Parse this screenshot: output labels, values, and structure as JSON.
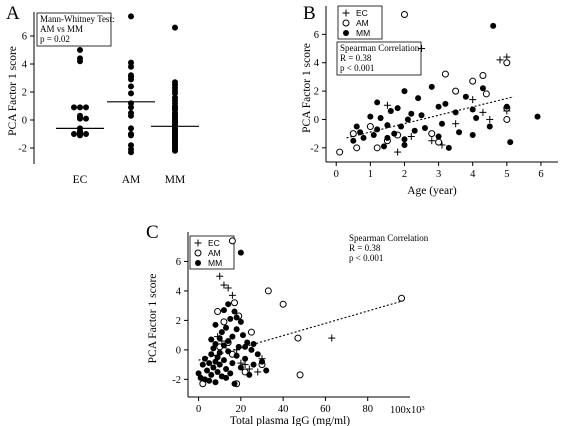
{
  "colors": {
    "ink": "#000000",
    "hollow_fill": "#ffffff"
  },
  "chart_data": [
    {
      "panel": "A",
      "type": "scatter",
      "categories": [
        "EC",
        "AM",
        "MM"
      ],
      "ylabel": "PCA Factor 1 score",
      "xlabel": "",
      "ylim": [
        -3,
        8
      ],
      "yticks": [
        "-2",
        "0",
        "2",
        "4",
        "6"
      ],
      "annotation": [
        "Mann-Whitney Test:",
        "AM vs MM",
        "p = 0.02"
      ],
      "medians": [
        -0.6,
        1.3,
        -0.45
      ],
      "groups": [
        {
          "category": "EC",
          "values": [
            5.0,
            4.4,
            4.2,
            0.9,
            0.9,
            0.9,
            0.3,
            0.2,
            0.1,
            0.1,
            -0.6,
            -0.8,
            -0.9,
            -1.0,
            -1.0,
            -1.0,
            -1.1
          ]
        },
        {
          "category": "AM",
          "values": [
            7.4,
            4.1,
            3.8,
            3.2,
            3.1,
            2.9,
            2.4,
            1.9,
            1.2,
            0.9,
            0.5,
            0.3,
            -0.6,
            -1.0,
            -1.1,
            -1.8,
            -2.1,
            -2.3
          ]
        },
        {
          "category": "MM",
          "values": [
            6.6,
            2.7,
            2.5,
            2.3,
            2.1,
            1.9,
            1.6,
            1.4,
            1.2,
            1.0,
            0.9,
            0.8,
            0.7,
            0.5,
            0.4,
            0.3,
            0.2,
            0.1,
            0.0,
            -0.1,
            -0.2,
            -0.3,
            -0.4,
            -0.5,
            -0.6,
            -0.7,
            -0.8,
            -0.9,
            -1.0,
            -1.1,
            -1.2,
            -1.3,
            -1.4,
            -1.5,
            -1.6,
            -1.7,
            -1.8,
            -1.9,
            -2.0,
            -2.1,
            -2.2
          ]
        }
      ]
    },
    {
      "panel": "B",
      "type": "scatter",
      "xlabel": "Age (year)",
      "ylabel": "PCA Factor 1 score",
      "xlim": [
        -0.3,
        6.5
      ],
      "ylim": [
        -3,
        8
      ],
      "xticks": [
        "0",
        "1",
        "2",
        "3",
        "4",
        "5",
        "6"
      ],
      "yticks": [
        "-2",
        "0",
        "2",
        "4",
        "6"
      ],
      "legend": [
        "EC",
        "AM",
        "MM"
      ],
      "legend_position": "top-right",
      "annotation": [
        "Spearman Correlation",
        "R = 0.38",
        "p < 0.001"
      ],
      "trendline": {
        "x": [
          0.3,
          5.2
        ],
        "y": [
          -1.3,
          1.6
        ]
      },
      "series": [
        {
          "name": "EC",
          "marker": "plus",
          "x": [
            1.5,
            2.5,
            1.8,
            2.2,
            2.8,
            3.1,
            4.0,
            4.3,
            4.5,
            4.8,
            5.0,
            5.0,
            3.5
          ],
          "y": [
            1.0,
            5.0,
            -2.3,
            -1.2,
            -1.5,
            -1.8,
            1.4,
            0.5,
            0.0,
            4.2,
            4.4,
            0.6,
            -0.3
          ]
        },
        {
          "name": "AM",
          "marker": "circle-open",
          "x": [
            0.1,
            0.5,
            0.6,
            1.0,
            1.5,
            1.8,
            2.0,
            3.2,
            3.5,
            4.0,
            4.3,
            4.4,
            5.0,
            5.0,
            5.0,
            2.8,
            1.2,
            3.0
          ],
          "y": [
            -2.3,
            -1.0,
            -2.0,
            -0.5,
            -1.5,
            -1.1,
            7.4,
            3.2,
            2.0,
            2.7,
            3.1,
            1.8,
            4.0,
            0.8,
            0.0,
            -1.0,
            -2.0,
            -1.6
          ]
        },
        {
          "name": "MM",
          "marker": "circle-filled",
          "x": [
            0.5,
            0.6,
            0.7,
            0.8,
            1.0,
            1.1,
            1.2,
            1.2,
            1.3,
            1.4,
            1.5,
            1.5,
            1.6,
            1.7,
            1.8,
            1.9,
            2.0,
            2.0,
            2.0,
            2.1,
            2.2,
            2.3,
            2.4,
            2.5,
            2.6,
            2.8,
            3.0,
            3.0,
            3.1,
            3.2,
            3.3,
            3.5,
            3.6,
            3.8,
            4.0,
            4.0,
            4.1,
            4.3,
            4.5,
            4.6,
            5.0,
            5.1,
            5.9
          ],
          "y": [
            -1.5,
            -0.5,
            -0.9,
            -1.3,
            0.2,
            -1.1,
            1.2,
            -0.7,
            0.1,
            -1.9,
            -0.4,
            -1.3,
            0.6,
            -1.0,
            0.8,
            -0.5,
            2.0,
            -1.8,
            -1.4,
            0.0,
            0.4,
            -0.8,
            1.5,
            0.3,
            -0.6,
            2.3,
            0.9,
            -1.2,
            -0.3,
            1.1,
            -2.0,
            0.5,
            -0.9,
            1.6,
            0.7,
            -1.1,
            0.1,
            2.2,
            -0.5,
            6.6,
            0.9,
            -1.6,
            0.2
          ]
        }
      ]
    },
    {
      "panel": "C",
      "type": "scatter",
      "xlabel": "Total plasma IgG (mg/ml)",
      "ylabel": "PCA Factor 1 score",
      "xlim": [
        -5,
        100
      ],
      "ylim": [
        -3.2,
        8
      ],
      "xticks": [
        "0",
        "20",
        "40",
        "60",
        "80"
      ],
      "x_multiplier": "100x10³",
      "yticks": [
        "-2",
        "0",
        "2",
        "4",
        "6"
      ],
      "legend": [
        "EC",
        "AM",
        "MM"
      ],
      "legend_position": "top-left",
      "annotation": [
        "Spearman Correlation",
        "R = 0.38",
        "p < 0.001"
      ],
      "trendline": {
        "x": [
          0,
          96
        ],
        "y": [
          -0.7,
          3.3
        ]
      },
      "series": [
        {
          "name": "EC",
          "marker": "plus",
          "x": [
            10,
            12,
            14,
            16,
            9,
            11,
            13,
            20,
            22,
            24,
            30,
            63,
            28,
            18
          ],
          "y": [
            5.0,
            4.4,
            4.2,
            3.7,
            0.9,
            0.6,
            0.3,
            -0.9,
            -1.0,
            -1.3,
            -0.6,
            0.8,
            -1.5,
            0.0
          ]
        },
        {
          "name": "AM",
          "marker": "circle-open",
          "x": [
            16,
            9,
            33,
            40,
            47,
            12,
            14,
            17,
            19,
            2,
            18,
            48,
            96,
            25,
            16,
            10,
            30,
            22
          ],
          "y": [
            7.4,
            2.6,
            4.0,
            3.1,
            0.8,
            1.9,
            0.5,
            3.2,
            2.3,
            -2.3,
            -2.3,
            -1.7,
            3.5,
            1.2,
            -0.3,
            0.2,
            -1.0,
            -1.5
          ]
        },
        {
          "name": "MM",
          "marker": "circle-filled",
          "x": [
            0,
            1,
            2,
            3,
            3,
            4,
            5,
            5,
            6,
            6,
            7,
            7,
            8,
            8,
            8,
            9,
            9,
            10,
            10,
            10,
            11,
            11,
            12,
            12,
            13,
            13,
            14,
            14,
            15,
            15,
            16,
            16,
            17,
            18,
            18,
            19,
            20,
            20,
            21,
            22,
            23,
            24,
            25,
            26,
            28,
            30,
            32,
            18,
            14,
            12,
            8,
            6,
            20,
            22,
            17,
            13,
            26
          ],
          "y": [
            -1.6,
            -1.9,
            -1.0,
            -2.0,
            -0.6,
            -1.4,
            -0.9,
            -2.1,
            -0.3,
            -1.7,
            0.1,
            -1.2,
            -0.8,
            -2.2,
            0.4,
            -0.5,
            -1.5,
            0.8,
            -1.0,
            -0.2,
            1.2,
            -1.8,
            0.3,
            -0.7,
            1.5,
            -1.3,
            0.6,
            -0.1,
            2.1,
            -1.6,
            0.9,
            -0.9,
            2.6,
            1.4,
            -0.4,
            0.2,
            6.6,
            -1.2,
            1.0,
            -0.6,
            0.5,
            -1.7,
            0.0,
            -1.0,
            -0.3,
            -0.8,
            -1.4,
            2.2,
            3.1,
            2.7,
            1.7,
            0.7,
            1.9,
            0.2,
            -2.3,
            -1.9,
            0.4
          ]
        }
      ]
    }
  ]
}
